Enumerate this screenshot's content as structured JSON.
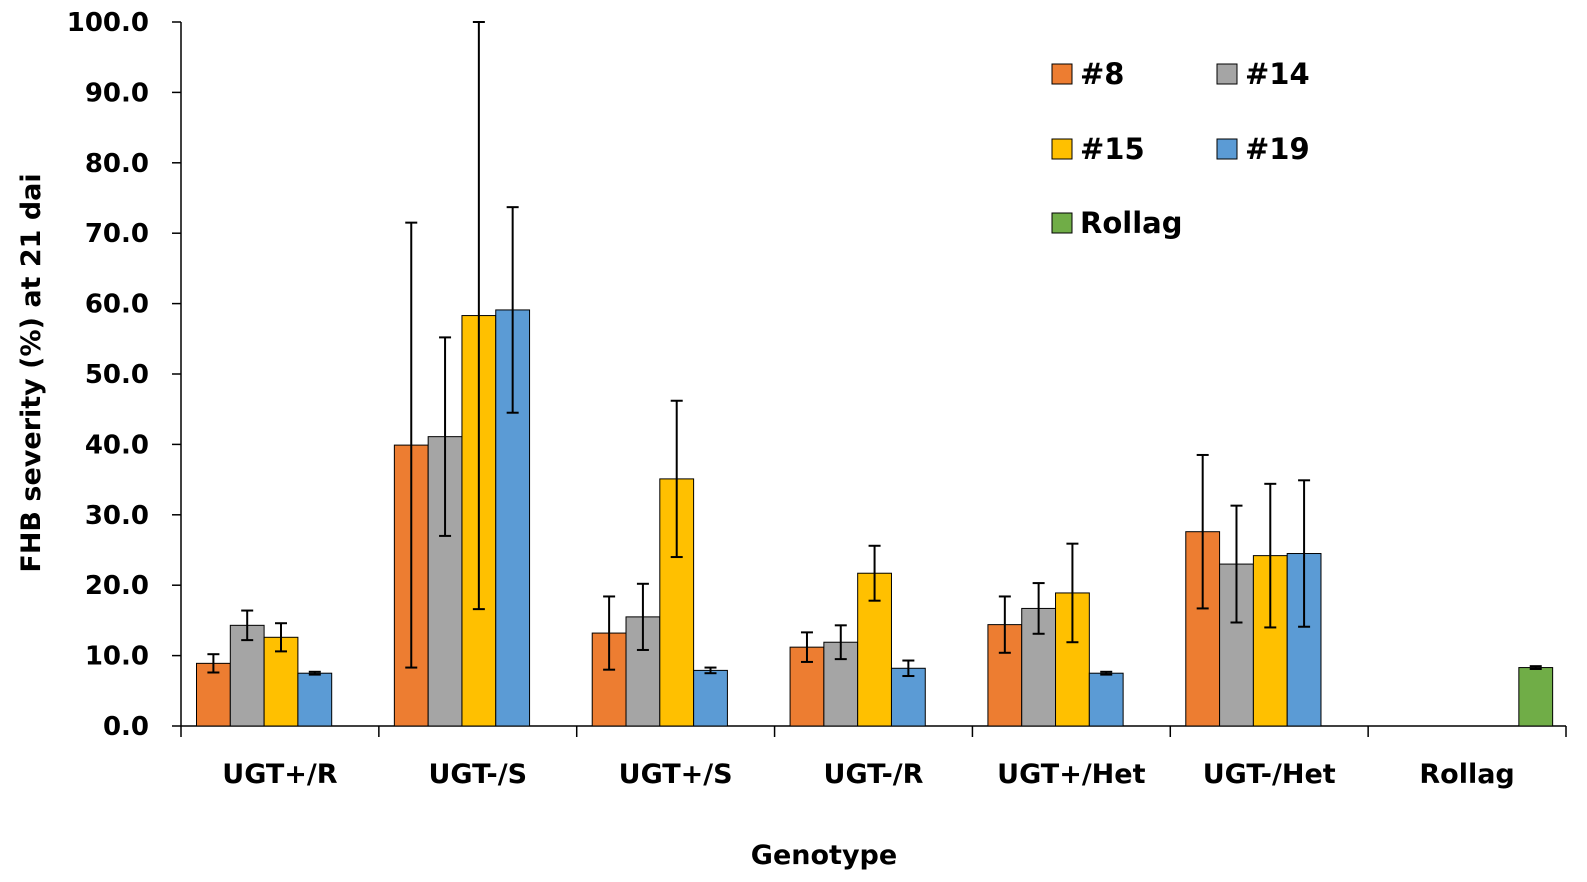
{
  "chart_data": {
    "type": "bar",
    "title": "",
    "xlabel": "Genotype",
    "ylabel": "FHB severity (%) at 21 dai",
    "ylim": [
      0,
      100
    ],
    "yticks": [
      "0.0",
      "10.0",
      "20.0",
      "30.0",
      "40.0",
      "50.0",
      "60.0",
      "70.0",
      "80.0",
      "90.0",
      "100.0"
    ],
    "categories": [
      "UGT+/R",
      "UGT-/S",
      "UGT+/S",
      "UGT-/R",
      "UGT+/Het",
      "UGT-/Het",
      "Rollag"
    ],
    "series": [
      {
        "name": "#8",
        "color": "#ED7D31",
        "values": [
          8.9,
          39.9,
          13.2,
          11.2,
          14.4,
          27.6,
          null
        ],
        "error": [
          1.3,
          31.6,
          5.2,
          2.1,
          4.0,
          10.9,
          null
        ]
      },
      {
        "name": "#14",
        "color": "#A5A5A5",
        "values": [
          14.3,
          41.1,
          15.5,
          11.9,
          16.7,
          23.0,
          null
        ],
        "error": [
          2.1,
          14.1,
          4.7,
          2.4,
          3.6,
          8.3,
          null
        ]
      },
      {
        "name": "#15",
        "color": "#FFC000",
        "values": [
          12.6,
          58.3,
          35.1,
          21.7,
          18.9,
          24.2,
          null
        ],
        "error": [
          2.0,
          41.7,
          11.1,
          3.9,
          7.0,
          10.2,
          null
        ]
      },
      {
        "name": "#19",
        "color": "#5B9BD5",
        "values": [
          7.5,
          59.1,
          7.9,
          8.2,
          7.5,
          24.5,
          null
        ],
        "error": [
          0.2,
          14.6,
          0.4,
          1.1,
          0.2,
          10.4,
          null
        ]
      },
      {
        "name": "Rollag",
        "color": "#70AD47",
        "values": [
          null,
          null,
          null,
          null,
          null,
          null,
          8.3
        ],
        "error": [
          null,
          null,
          null,
          null,
          null,
          null,
          0.2
        ]
      }
    ],
    "legend": {
      "position": "top-right",
      "entries": [
        "#8",
        "#14",
        "#15",
        "#19",
        "Rollag"
      ]
    },
    "grid": false
  }
}
